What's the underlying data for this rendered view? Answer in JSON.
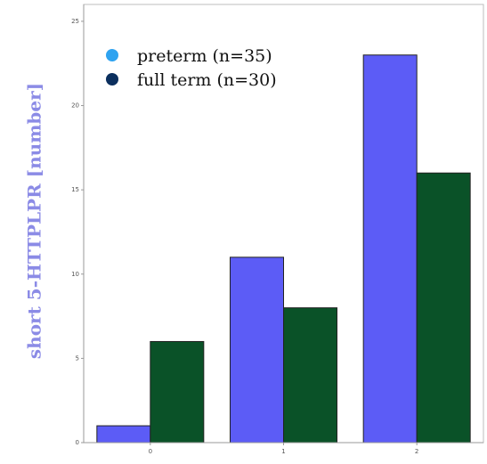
{
  "chart_data": {
    "type": "bar",
    "categories": [
      "0",
      "1",
      "2"
    ],
    "series": [
      {
        "name": "preterm  (n=35)",
        "values": [
          1,
          11,
          23
        ],
        "color": "#5c5cf6",
        "legend_color": "#2fa3f0"
      },
      {
        "name": "full term (n=30)",
        "values": [
          6,
          8,
          16
        ],
        "color": "#0a5228",
        "legend_color": "#0b2f5e"
      }
    ],
    "title": "",
    "xlabel": "",
    "ylabel": "short 5-HTTPLPR [number]",
    "ylim": [
      0,
      26
    ],
    "yticks": [
      0,
      5,
      10,
      15,
      20,
      25
    ],
    "grid": false,
    "legend": "top-left"
  }
}
